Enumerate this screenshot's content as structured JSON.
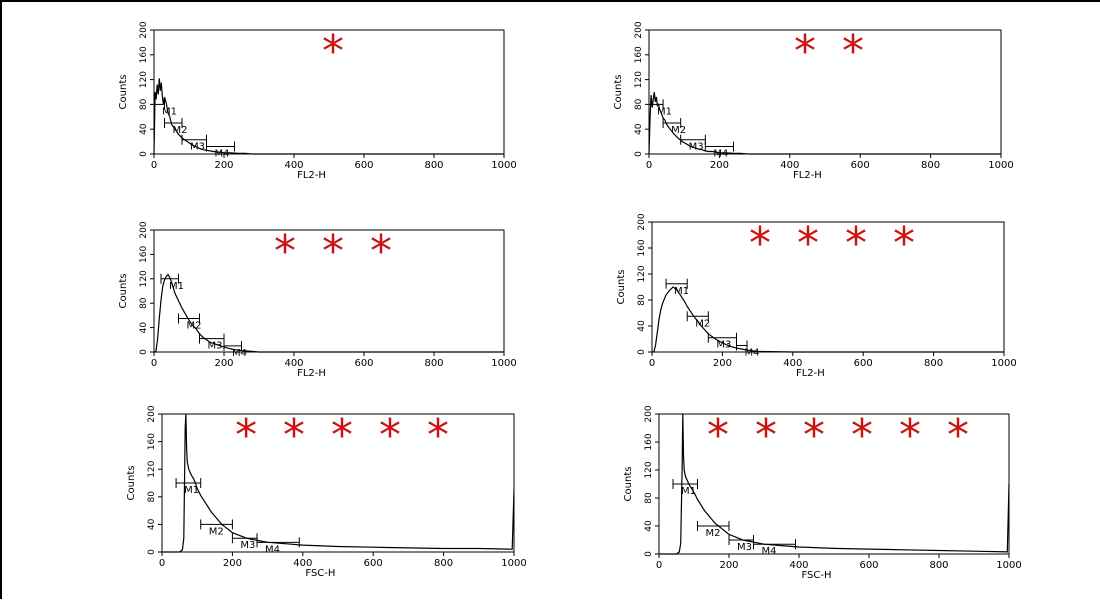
{
  "figure": {
    "frame_color": "#000000",
    "star_color": "#cc1111",
    "trace_color": "#000000"
  },
  "chart_data": [
    {
      "type": "line",
      "id": "panel-1",
      "stars": "*",
      "xlabel": "FL2-H",
      "ylabel": "Counts",
      "xlim": [
        0,
        1000
      ],
      "ylim": [
        0,
        200
      ],
      "xticks": [
        0,
        200,
        400,
        600,
        800,
        1000
      ],
      "yticks": [
        0,
        40,
        80,
        120,
        160,
        200
      ],
      "series": [
        {
          "x": [
            0,
            3,
            6,
            9,
            12,
            15,
            18,
            21,
            24,
            27,
            30,
            35,
            40,
            45,
            50,
            60,
            70,
            80,
            90,
            100,
            110,
            120,
            130,
            140,
            150,
            160,
            170,
            180,
            190,
            200,
            220,
            240,
            260,
            280,
            300,
            340,
            400,
            600,
            800,
            1000
          ],
          "y": [
            0,
            100,
            88,
            112,
            96,
            122,
            102,
            115,
            92,
            80,
            92,
            82,
            66,
            60,
            48,
            40,
            32,
            26,
            22,
            18,
            14,
            12,
            9,
            7,
            6,
            5,
            4,
            3,
            3,
            2,
            2,
            1,
            1,
            0,
            0,
            0,
            0,
            0,
            0,
            0
          ]
        }
      ],
      "markers": [
        {
          "label": "M1",
          "x1": 0,
          "x2": 30,
          "y": 80
        },
        {
          "label": "M2",
          "x1": 30,
          "x2": 80,
          "y": 50
        },
        {
          "label": "M3",
          "x1": 80,
          "x2": 150,
          "y": 23
        },
        {
          "label": "M4",
          "x1": 150,
          "x2": 230,
          "y": 12
        }
      ]
    },
    {
      "type": "line",
      "id": "panel-2",
      "stars": "* *",
      "xlabel": "FL2-H",
      "ylabel": "Counts",
      "xlim": [
        0,
        1000
      ],
      "ylim": [
        0,
        200
      ],
      "xticks": [
        0,
        200,
        400,
        600,
        800,
        1000
      ],
      "yticks": [
        0,
        40,
        80,
        120,
        160,
        200
      ],
      "series": [
        {
          "x": [
            0,
            3,
            6,
            9,
            12,
            15,
            18,
            21,
            24,
            27,
            30,
            35,
            40,
            45,
            50,
            60,
            70,
            80,
            90,
            100,
            110,
            120,
            130,
            140,
            150,
            160,
            170,
            180,
            190,
            200,
            220,
            240,
            260,
            280,
            300,
            400,
            600,
            800,
            1000
          ],
          "y": [
            0,
            60,
            95,
            75,
            88,
            100,
            84,
            92,
            78,
            80,
            72,
            66,
            58,
            55,
            48,
            40,
            33,
            27,
            22,
            18,
            15,
            12,
            10,
            8,
            7,
            5,
            4,
            4,
            3,
            2,
            2,
            1,
            1,
            0,
            0,
            0,
            0,
            0,
            0
          ]
        }
      ],
      "markers": [
        {
          "label": "M1",
          "x1": 0,
          "x2": 40,
          "y": 80
        },
        {
          "label": "M2",
          "x1": 40,
          "x2": 90,
          "y": 50
        },
        {
          "label": "M3",
          "x1": 90,
          "x2": 160,
          "y": 23
        },
        {
          "label": "M4",
          "x1": 160,
          "x2": 240,
          "y": 12
        }
      ]
    },
    {
      "type": "line",
      "id": "panel-3",
      "stars": "* * *",
      "xlabel": "FL2-H",
      "ylabel": "Counts",
      "xlim": [
        0,
        1000
      ],
      "ylim": [
        0,
        200
      ],
      "xticks": [
        0,
        200,
        400,
        600,
        800,
        1000
      ],
      "yticks": [
        0,
        40,
        80,
        120,
        160,
        200
      ],
      "series": [
        {
          "x": [
            0,
            5,
            10,
            15,
            20,
            25,
            30,
            35,
            40,
            45,
            50,
            55,
            60,
            70,
            80,
            90,
            100,
            110,
            120,
            130,
            140,
            150,
            160,
            180,
            200,
            220,
            240,
            260,
            300,
            400,
            600,
            800,
            1000
          ],
          "y": [
            0,
            0,
            20,
            55,
            85,
            108,
            118,
            124,
            127,
            122,
            115,
            105,
            96,
            84,
            72,
            62,
            52,
            44,
            38,
            30,
            24,
            20,
            16,
            12,
            8,
            5,
            3,
            2,
            0,
            0,
            0,
            0,
            0
          ]
        }
      ],
      "markers": [
        {
          "label": "M1",
          "x1": 20,
          "x2": 70,
          "y": 120
        },
        {
          "label": "M2",
          "x1": 70,
          "x2": 130,
          "y": 55
        },
        {
          "label": "M3",
          "x1": 130,
          "x2": 200,
          "y": 22
        },
        {
          "label": "M4",
          "x1": 200,
          "x2": 250,
          "y": 10
        }
      ]
    },
    {
      "type": "line",
      "id": "panel-4",
      "stars": "* * * *",
      "xlabel": "FL2-H",
      "ylabel": "Counts",
      "xlim": [
        0,
        1000
      ],
      "ylim": [
        0,
        200
      ],
      "xticks": [
        0,
        200,
        400,
        600,
        800,
        1000
      ],
      "yticks": [
        0,
        40,
        80,
        120,
        160,
        200
      ],
      "series": [
        {
          "x": [
            0,
            5,
            10,
            15,
            20,
            25,
            30,
            40,
            50,
            60,
            70,
            80,
            90,
            100,
            110,
            120,
            130,
            140,
            150,
            160,
            180,
            200,
            220,
            240,
            260,
            280,
            300,
            400,
            600,
            800,
            1000
          ],
          "y": [
            0,
            0,
            10,
            30,
            50,
            65,
            75,
            88,
            95,
            100,
            96,
            88,
            80,
            70,
            62,
            54,
            47,
            40,
            34,
            28,
            20,
            14,
            9,
            6,
            4,
            2,
            1,
            0,
            0,
            0,
            0
          ]
        }
      ],
      "markers": [
        {
          "label": "M1",
          "x1": 40,
          "x2": 100,
          "y": 105
        },
        {
          "label": "M2",
          "x1": 100,
          "x2": 160,
          "y": 55
        },
        {
          "label": "M3",
          "x1": 160,
          "x2": 240,
          "y": 22
        },
        {
          "label": "M4",
          "x1": 240,
          "x2": 270,
          "y": 10
        }
      ]
    },
    {
      "type": "line",
      "id": "panel-5",
      "stars": "* * * * *",
      "xlabel": "FSC-H",
      "ylabel": "Counts",
      "xlim": [
        0,
        1000
      ],
      "ylim": [
        0,
        200
      ],
      "xticks": [
        0,
        200,
        400,
        600,
        800,
        1000
      ],
      "yticks": [
        0,
        40,
        80,
        120,
        160,
        200
      ],
      "series": [
        {
          "x": [
            0,
            50,
            58,
            62,
            66,
            68,
            70,
            72,
            76,
            80,
            85,
            90,
            95,
            100,
            110,
            120,
            130,
            140,
            150,
            160,
            170,
            180,
            190,
            200,
            220,
            240,
            260,
            280,
            300,
            350,
            400,
            500,
            600,
            700,
            800,
            900,
            995,
            1000
          ],
          "y": [
            0,
            0,
            3,
            20,
            180,
            200,
            150,
            130,
            120,
            115,
            110,
            106,
            100,
            92,
            82,
            74,
            66,
            58,
            52,
            46,
            40,
            36,
            32,
            28,
            24,
            20,
            18,
            16,
            14,
            12,
            10,
            8,
            7,
            6,
            5,
            5,
            4,
            90
          ]
        }
      ],
      "markers": [
        {
          "label": "M1",
          "x1": 40,
          "x2": 110,
          "y": 100
        },
        {
          "label": "M2",
          "x1": 110,
          "x2": 200,
          "y": 40
        },
        {
          "label": "M3",
          "x1": 200,
          "x2": 270,
          "y": 20
        },
        {
          "label": "M4",
          "x1": 270,
          "x2": 390,
          "y": 14
        }
      ]
    },
    {
      "type": "line",
      "id": "panel-6",
      "stars": "* * * * * *",
      "xlabel": "FSC-H",
      "ylabel": "Counts",
      "xlim": [
        0,
        1000
      ],
      "ylim": [
        0,
        200
      ],
      "xticks": [
        0,
        200,
        400,
        600,
        800,
        1000
      ],
      "yticks": [
        0,
        40,
        80,
        120,
        160,
        200
      ],
      "series": [
        {
          "x": [
            0,
            50,
            58,
            62,
            66,
            68,
            70,
            72,
            76,
            80,
            85,
            90,
            95,
            100,
            110,
            120,
            130,
            140,
            150,
            160,
            170,
            180,
            190,
            200,
            220,
            240,
            260,
            280,
            300,
            350,
            400,
            500,
            600,
            700,
            800,
            900,
            995,
            1000
          ],
          "y": [
            0,
            0,
            3,
            15,
            120,
            200,
            140,
            120,
            110,
            106,
            100,
            96,
            92,
            88,
            78,
            70,
            62,
            56,
            50,
            44,
            40,
            36,
            32,
            28,
            24,
            20,
            18,
            16,
            14,
            12,
            10,
            8,
            7,
            6,
            5,
            4,
            3,
            100
          ]
        }
      ],
      "markers": [
        {
          "label": "M1",
          "x1": 40,
          "x2": 110,
          "y": 100
        },
        {
          "label": "M2",
          "x1": 110,
          "x2": 200,
          "y": 40
        },
        {
          "label": "M3",
          "x1": 200,
          "x2": 270,
          "y": 20
        },
        {
          "label": "M4",
          "x1": 270,
          "x2": 390,
          "y": 14
        }
      ]
    }
  ]
}
